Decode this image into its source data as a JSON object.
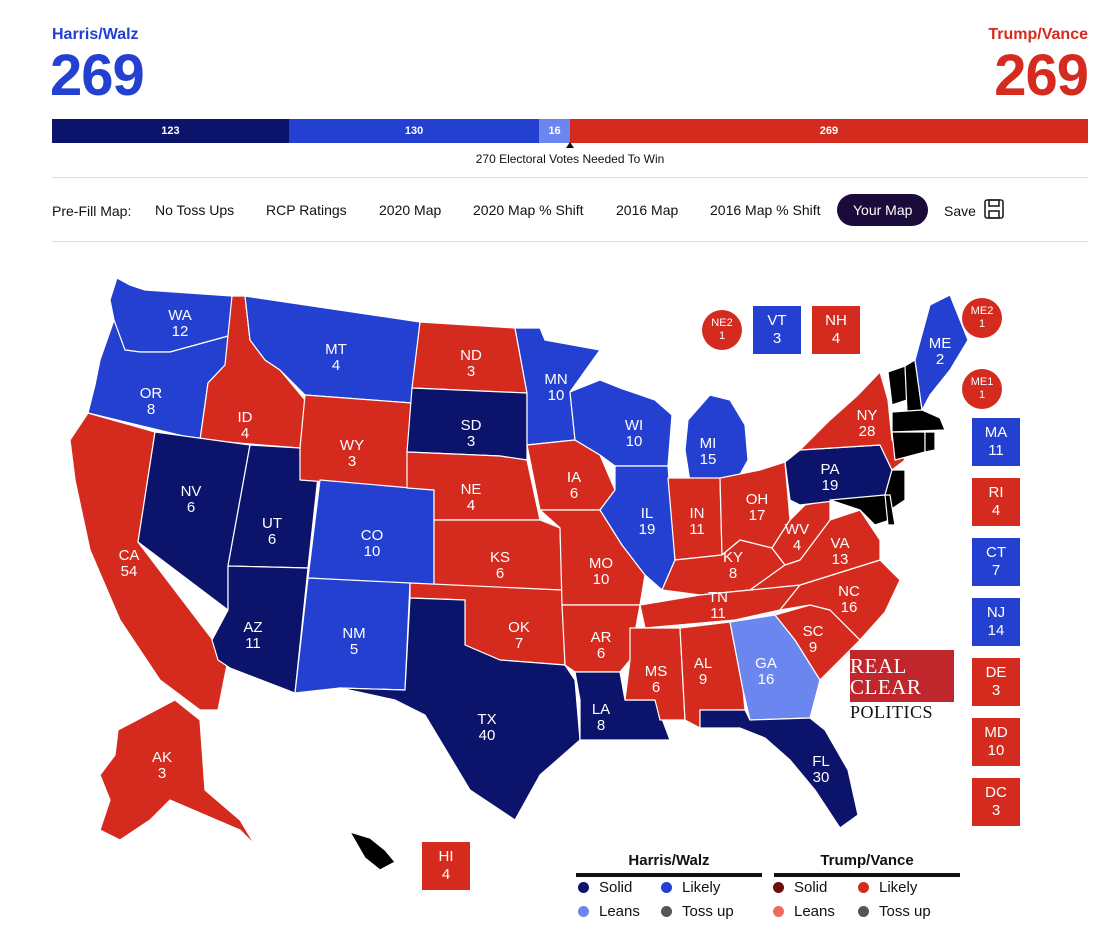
{
  "header": {
    "harris": {
      "name": "Harris/Walz",
      "total": "269"
    },
    "trump": {
      "name": "Trump/Vance",
      "total": "269"
    }
  },
  "bar": {
    "segments": [
      {
        "label": "123",
        "value": 123,
        "color": "#0b136a"
      },
      {
        "label": "130",
        "value": 130,
        "color": "#2440d0"
      },
      {
        "label": "16",
        "value": 16,
        "color": "#6c86ef"
      },
      {
        "label": "269",
        "value": 269,
        "color": "#d52b1e"
      }
    ],
    "needed": "270 Electoral Votes Needed To Win"
  },
  "toolbar": {
    "label": "Pre-Fill Map:",
    "items": [
      "No Toss Ups",
      "RCP Ratings",
      "2020 Map",
      "2020 Map % Shift",
      "2016 Map",
      "2016 Map % Shift",
      "Your Map"
    ],
    "active": "Your Map",
    "save": "Save",
    "save_icon": "floppy-disk-icon"
  },
  "colors": {
    "dem_solid": "#0b136a",
    "dem_likely": "#2440d0",
    "dem_leans": "#6c86ef",
    "rep_solid": "#6b0f0a",
    "rep_likely": "#d52b1e",
    "rep_leans": "#ee6a62",
    "tossup": "#555555"
  },
  "states": {
    "WA": {
      "abbr": "WA",
      "ev": "12",
      "rating": "dem_likely"
    },
    "OR": {
      "abbr": "OR",
      "ev": "8",
      "rating": "dem_likely"
    },
    "CA": {
      "abbr": "CA",
      "ev": "54",
      "rating": "rep_likely"
    },
    "ID": {
      "abbr": "ID",
      "ev": "4",
      "rating": "rep_likely"
    },
    "NV": {
      "abbr": "NV",
      "ev": "6",
      "rating": "dem_solid"
    },
    "UT": {
      "abbr": "UT",
      "ev": "6",
      "rating": "dem_solid"
    },
    "AZ": {
      "abbr": "AZ",
      "ev": "11",
      "rating": "dem_solid"
    },
    "MT": {
      "abbr": "MT",
      "ev": "4",
      "rating": "dem_likely"
    },
    "WY": {
      "abbr": "WY",
      "ev": "3",
      "rating": "rep_likely"
    },
    "CO": {
      "abbr": "CO",
      "ev": "10",
      "rating": "dem_likely"
    },
    "NM": {
      "abbr": "NM",
      "ev": "5",
      "rating": "dem_likely"
    },
    "ND": {
      "abbr": "ND",
      "ev": "3",
      "rating": "rep_likely"
    },
    "SD": {
      "abbr": "SD",
      "ev": "3",
      "rating": "dem_solid"
    },
    "NE": {
      "abbr": "NE",
      "ev": "4",
      "rating": "rep_likely"
    },
    "KS": {
      "abbr": "KS",
      "ev": "6",
      "rating": "rep_likely"
    },
    "OK": {
      "abbr": "OK",
      "ev": "7",
      "rating": "rep_likely"
    },
    "TX": {
      "abbr": "TX",
      "ev": "40",
      "rating": "dem_solid"
    },
    "MN": {
      "abbr": "MN",
      "ev": "10",
      "rating": "dem_likely"
    },
    "IA": {
      "abbr": "IA",
      "ev": "6",
      "rating": "rep_likely"
    },
    "MO": {
      "abbr": "MO",
      "ev": "10",
      "rating": "rep_likely"
    },
    "AR": {
      "abbr": "AR",
      "ev": "6",
      "rating": "rep_likely"
    },
    "LA": {
      "abbr": "LA",
      "ev": "8",
      "rating": "dem_solid"
    },
    "WI": {
      "abbr": "WI",
      "ev": "10",
      "rating": "dem_likely"
    },
    "IL": {
      "abbr": "IL",
      "ev": "19",
      "rating": "dem_likely"
    },
    "MI": {
      "abbr": "MI",
      "ev": "15",
      "rating": "dem_likely"
    },
    "IN": {
      "abbr": "IN",
      "ev": "11",
      "rating": "rep_likely"
    },
    "OH": {
      "abbr": "OH",
      "ev": "17",
      "rating": "rep_likely"
    },
    "KY": {
      "abbr": "KY",
      "ev": "8",
      "rating": "rep_likely"
    },
    "TN": {
      "abbr": "TN",
      "ev": "11",
      "rating": "rep_likely"
    },
    "MS": {
      "abbr": "MS",
      "ev": "6",
      "rating": "rep_likely"
    },
    "AL": {
      "abbr": "AL",
      "ev": "9",
      "rating": "rep_likely"
    },
    "GA": {
      "abbr": "GA",
      "ev": "16",
      "rating": "dem_leans"
    },
    "FL": {
      "abbr": "FL",
      "ev": "30",
      "rating": "dem_solid"
    },
    "SC": {
      "abbr": "SC",
      "ev": "9",
      "rating": "rep_likely"
    },
    "NC": {
      "abbr": "NC",
      "ev": "16",
      "rating": "rep_likely"
    },
    "VA": {
      "abbr": "VA",
      "ev": "13",
      "rating": "rep_likely"
    },
    "WV": {
      "abbr": "WV",
      "ev": "4",
      "rating": "rep_likely"
    },
    "PA": {
      "abbr": "PA",
      "ev": "19",
      "rating": "dem_solid"
    },
    "NY": {
      "abbr": "NY",
      "ev": "28",
      "rating": "rep_likely"
    },
    "ME": {
      "abbr": "ME",
      "ev": "2",
      "rating": "dem_likely"
    },
    "AK": {
      "abbr": "AK",
      "ev": "3",
      "rating": "rep_likely"
    }
  },
  "small_states": [
    {
      "abbr": "VT",
      "ev": "3",
      "rating": "dem_likely"
    },
    {
      "abbr": "NH",
      "ev": "4",
      "rating": "rep_likely"
    },
    {
      "abbr": "MA",
      "ev": "11",
      "rating": "dem_likely"
    },
    {
      "abbr": "RI",
      "ev": "4",
      "rating": "rep_likely"
    },
    {
      "abbr": "CT",
      "ev": "7",
      "rating": "dem_likely"
    },
    {
      "abbr": "NJ",
      "ev": "14",
      "rating": "dem_likely"
    },
    {
      "abbr": "DE",
      "ev": "3",
      "rating": "rep_likely"
    },
    {
      "abbr": "MD",
      "ev": "10",
      "rating": "rep_likely"
    },
    {
      "abbr": "DC",
      "ev": "3",
      "rating": "rep_likely"
    },
    {
      "abbr": "HI",
      "ev": "4",
      "rating": "rep_likely"
    }
  ],
  "districts": [
    {
      "abbr": "NE2",
      "ev": "1",
      "rating": "rep_likely"
    },
    {
      "abbr": "ME2",
      "ev": "1",
      "rating": "rep_likely"
    },
    {
      "abbr": "ME1",
      "ev": "1",
      "rating": "rep_likely"
    }
  ],
  "logo": {
    "line1": "REAL",
    "line2": "CLEAR",
    "line3": "POLITICS"
  },
  "legend": {
    "harris": {
      "title": "Harris/Walz",
      "items": [
        {
          "label": "Solid",
          "rating": "dem_solid"
        },
        {
          "label": "Likely",
          "rating": "dem_likely"
        },
        {
          "label": "Leans",
          "rating": "dem_leans"
        },
        {
          "label": "Toss up",
          "rating": "tossup"
        }
      ]
    },
    "trump": {
      "title": "Trump/Vance",
      "items": [
        {
          "label": "Solid",
          "rating": "rep_solid"
        },
        {
          "label": "Likely",
          "rating": "rep_likely"
        },
        {
          "label": "Leans",
          "rating": "rep_leans"
        },
        {
          "label": "Toss up",
          "rating": "tossup"
        }
      ]
    }
  }
}
